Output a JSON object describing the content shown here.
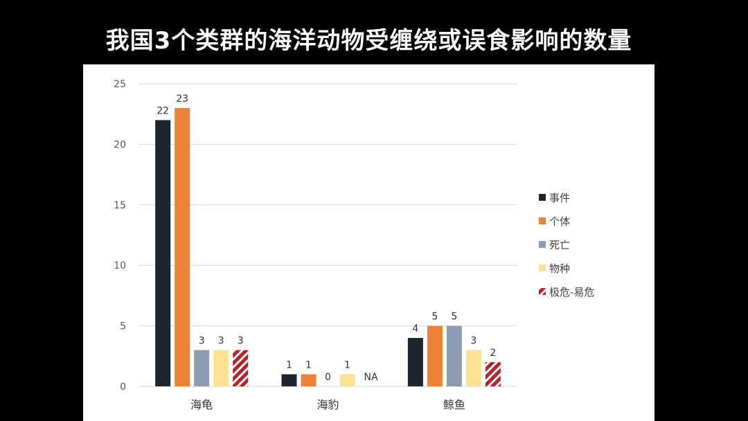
{
  "page": {
    "title": "我国3个类群的海洋动物受缠绕或误食影响的数量"
  },
  "chart_data": {
    "type": "bar",
    "title": "我国3个类群的海洋动物受缠绕或误食影响的数量",
    "xlabel": "",
    "ylabel": "",
    "ylim": [
      0,
      25
    ],
    "yticks": [
      0,
      5,
      10,
      15,
      20,
      25
    ],
    "grid": true,
    "legend_position": "right",
    "categories": [
      "海龟",
      "海豹",
      "鲸鱼"
    ],
    "series": [
      {
        "name": "事件",
        "color": "#1f2530",
        "pattern": "solid",
        "values": [
          22,
          1,
          4
        ],
        "labels": [
          "22",
          "1",
          "4"
        ]
      },
      {
        "name": "个体",
        "color": "#ee8236",
        "pattern": "solid",
        "values": [
          23,
          1,
          5
        ],
        "labels": [
          "23",
          "1",
          "5"
        ]
      },
      {
        "name": "死亡",
        "color": "#8e9cb3",
        "pattern": "solid",
        "values": [
          3,
          0,
          5
        ],
        "labels": [
          "3",
          "0",
          "5"
        ]
      },
      {
        "name": "物种",
        "color": "#fde293",
        "pattern": "solid",
        "values": [
          3,
          1,
          3
        ],
        "labels": [
          "3",
          "1",
          "3"
        ]
      },
      {
        "name": "极危-易危",
        "color": "#b8232b",
        "pattern": "hatched",
        "values": [
          3,
          null,
          2
        ],
        "labels": [
          "3",
          "NA",
          "2"
        ]
      }
    ],
    "colors": {
      "gridline": "#d9d9d9",
      "tick_text": "#595959",
      "value_text": "#333333",
      "category_text": "#333333"
    }
  }
}
